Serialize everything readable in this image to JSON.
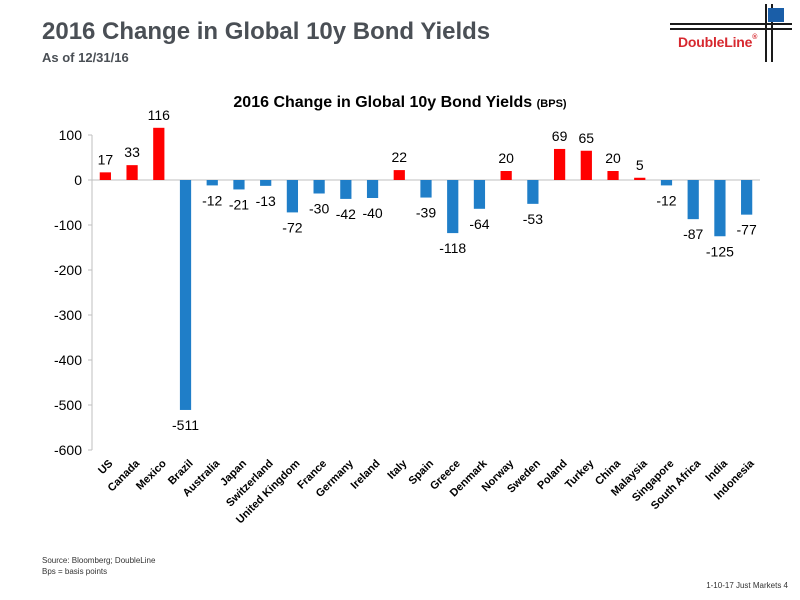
{
  "header": {
    "title": "2016 Change in Global 10y Bond Yields",
    "subtitle": "As of 12/31/16",
    "logo_text": "DoubleLine",
    "logo_mark": "®"
  },
  "chart_data": {
    "type": "bar",
    "title": "2016 Change in Global 10y Bond Yields",
    "title_unit": "(BPS)",
    "categories": [
      "US",
      "Canada",
      "Mexico",
      "Brazil",
      "Australia",
      "Japan",
      "Switzerland",
      "United Kingdom",
      "France",
      "Germany",
      "Ireland",
      "Italy",
      "Spain",
      "Greece",
      "Denmark",
      "Norway",
      "Sweden",
      "Poland",
      "Turkey",
      "China",
      "Malaysia",
      "Singapore",
      "South Africa",
      "India",
      "Indonesia"
    ],
    "values": [
      17,
      33,
      116,
      -511,
      -12,
      -21,
      -13,
      -72,
      -30,
      -42,
      -40,
      22,
      -39,
      -118,
      -64,
      20,
      -53,
      69,
      65,
      20,
      5,
      -12,
      -87,
      -125,
      -77
    ],
    "ylim": [
      -600,
      100
    ],
    "yticks": [
      100,
      0,
      -100,
      -200,
      -300,
      -400,
      -500,
      -600
    ],
    "positive_color": "#ff0000",
    "negative_color": "#1f7ec8",
    "grid": false,
    "legend": "none"
  },
  "footer": {
    "source": "Source: Bloomberg; DoubleLine",
    "note": "Bps = basis points",
    "page": "1-10-17 Just Markets   4"
  }
}
